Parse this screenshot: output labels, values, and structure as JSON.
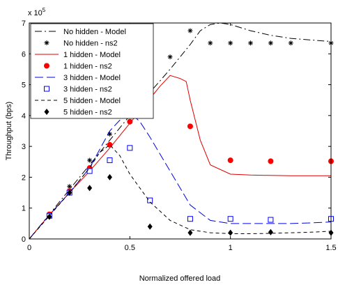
{
  "chart_data": {
    "type": "line",
    "title": "",
    "xlabel": "Normalized offered load",
    "ylabel": "Throughput (bps)",
    "y_multiplier": "x 10",
    "y_exponent": "5",
    "xlim": [
      0,
      1.5
    ],
    "ylim": [
      0,
      7
    ],
    "x_ticks": [
      0,
      0.5,
      1,
      1.5
    ],
    "x_tick_labels": [
      "0",
      "0.5",
      "1",
      "1.5"
    ],
    "y_ticks": [
      0,
      1,
      2,
      3,
      4,
      5,
      6,
      7
    ],
    "y_tick_labels": [
      "0",
      "1",
      "2",
      "3",
      "4",
      "5",
      "6",
      "7"
    ],
    "grid": false,
    "legend_position": "top-left",
    "series": [
      {
        "name": "No hidden - Model",
        "kind": "line",
        "color": "#000000",
        "dash": "dashdot",
        "x": [
          0,
          0.1,
          0.2,
          0.3,
          0.4,
          0.5,
          0.6,
          0.7,
          0.8,
          0.85,
          0.9,
          0.95,
          1.0,
          1.1,
          1.2,
          1.3,
          1.4,
          1.5
        ],
        "y": [
          0,
          0.8,
          1.6,
          2.4,
          3.2,
          4.0,
          4.75,
          5.5,
          6.3,
          6.75,
          6.95,
          7.0,
          6.95,
          6.75,
          6.6,
          6.5,
          6.45,
          6.4
        ]
      },
      {
        "name": "No hidden - ns2",
        "kind": "marker",
        "marker": "star",
        "color": "#000000",
        "x": [
          0.1,
          0.2,
          0.3,
          0.4,
          0.5,
          0.6,
          0.7,
          0.8,
          0.9,
          1.0,
          1.1,
          1.2,
          1.3,
          1.5
        ],
        "y": [
          0.8,
          1.7,
          2.55,
          3.4,
          4.2,
          5.05,
          5.9,
          6.75,
          6.35,
          6.35,
          6.35,
          6.35,
          6.35,
          6.35
        ]
      },
      {
        "name": "1 hidden - Model",
        "kind": "line",
        "color": "#e00000",
        "dash": "solid",
        "x": [
          0,
          0.1,
          0.2,
          0.3,
          0.4,
          0.5,
          0.6,
          0.65,
          0.7,
          0.75,
          0.78,
          0.8,
          0.85,
          0.9,
          1.0,
          1.1,
          1.2,
          1.3,
          1.4,
          1.5
        ],
        "y": [
          0,
          0.78,
          1.5,
          2.2,
          2.95,
          3.75,
          4.55,
          4.95,
          5.3,
          5.2,
          5.1,
          4.5,
          3.2,
          2.4,
          2.1,
          2.07,
          2.06,
          2.05,
          2.05,
          2.05
        ]
      },
      {
        "name": "1 hidden - ns2",
        "kind": "marker",
        "marker": "circle",
        "color": "#ff0000",
        "x": [
          0.1,
          0.2,
          0.3,
          0.4,
          0.5,
          0.6,
          0.8,
          1.0,
          1.2,
          1.5
        ],
        "y": [
          0.8,
          1.55,
          2.3,
          3.05,
          3.8,
          4.75,
          3.65,
          2.55,
          2.52,
          2.52
        ]
      },
      {
        "name": "3 hidden - Model",
        "kind": "line",
        "color": "#0000e0",
        "dash": "longdash",
        "x": [
          0,
          0.1,
          0.2,
          0.3,
          0.4,
          0.45,
          0.5,
          0.55,
          0.6,
          0.7,
          0.8,
          0.9,
          1.0,
          1.1,
          1.2,
          1.3,
          1.4,
          1.5
        ],
        "y": [
          0,
          0.78,
          1.5,
          2.3,
          3.5,
          3.85,
          4.1,
          3.8,
          3.3,
          2.2,
          1.1,
          0.6,
          0.5,
          0.5,
          0.5,
          0.5,
          0.52,
          0.55
        ]
      },
      {
        "name": "3 hidden - ns2",
        "kind": "marker",
        "marker": "square",
        "color": "#0000ff",
        "x": [
          0.1,
          0.2,
          0.3,
          0.4,
          0.5,
          0.6,
          0.8,
          1.0,
          1.2,
          1.5
        ],
        "y": [
          0.75,
          1.5,
          2.2,
          2.55,
          2.95,
          1.25,
          0.65,
          0.65,
          0.62,
          0.65
        ]
      },
      {
        "name": "5 hidden - Model",
        "kind": "line",
        "color": "#000000",
        "dash": "dashed",
        "x": [
          0,
          0.1,
          0.2,
          0.3,
          0.35,
          0.4,
          0.45,
          0.5,
          0.6,
          0.7,
          0.8,
          0.9,
          1.0,
          1.1,
          1.2,
          1.3,
          1.4,
          1.5
        ],
        "y": [
          0,
          0.75,
          1.5,
          2.3,
          2.8,
          3.05,
          2.7,
          2.1,
          1.2,
          0.6,
          0.3,
          0.2,
          0.17,
          0.17,
          0.18,
          0.2,
          0.22,
          0.25
        ]
      },
      {
        "name": "5 hidden - ns2",
        "kind": "marker",
        "marker": "diamond",
        "color": "#000000",
        "x": [
          0.1,
          0.2,
          0.3,
          0.4,
          0.6,
          0.8,
          1.0,
          1.2,
          1.5
        ],
        "y": [
          0.72,
          1.5,
          1.65,
          2.0,
          0.4,
          0.2,
          0.2,
          0.22,
          0.2
        ]
      }
    ]
  }
}
